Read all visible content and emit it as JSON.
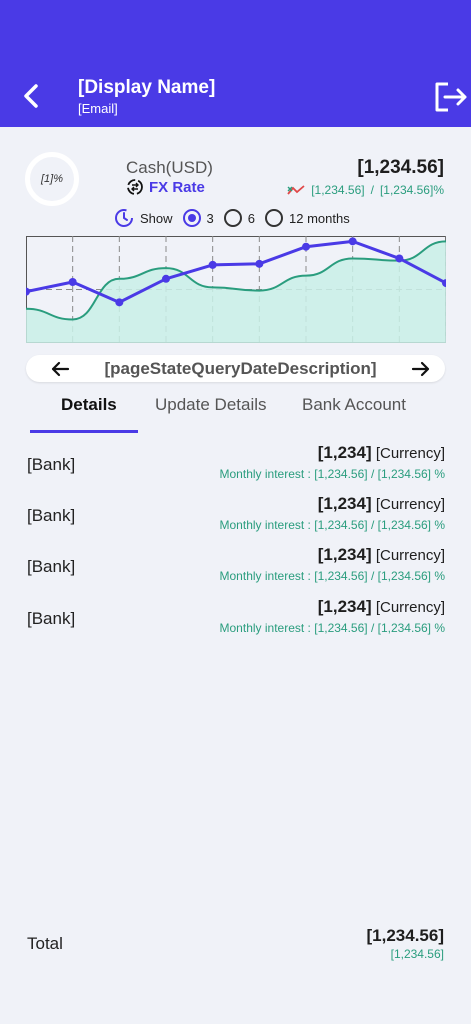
{
  "header": {
    "display_name": "[Display Name]",
    "email": "[Email]",
    "back_icon": "chevron-left-icon",
    "logout_icon": "logout-icon",
    "color": "#4a3ae6"
  },
  "summary": {
    "ring_percent": "[1]%",
    "cash_label": "Cash(USD)",
    "fx_label": "FX Rate",
    "balance": "[1,234.56]",
    "rate_left": "[1,234.56]",
    "rate_sep": "/",
    "rate_right": "[1,234.56]%"
  },
  "period": {
    "show_label": "Show",
    "options": [
      "3",
      "6",
      "12 months"
    ],
    "selected": "3"
  },
  "chart_data": {
    "type": "line",
    "series": [
      {
        "values": [
          0.48,
          0.57,
          0.38,
          0.6,
          0.73,
          0.74,
          0.9,
          0.95,
          0.79,
          0.56
        ]
      }
    ],
    "area_series": [
      {
        "values": [
          0.32,
          0.22,
          0.6,
          0.7,
          0.52,
          0.49,
          0.63,
          0.79,
          0.77,
          0.95
        ]
      }
    ],
    "ylim": [
      0,
      1
    ],
    "grid": true,
    "colors": {
      "line": "#4a3ae6",
      "area": "#2a9d7e",
      "area_fill": "#c9f0e7"
    }
  },
  "date_nav": {
    "description": "[pageStateQueryDateDescription]"
  },
  "tabs": [
    {
      "label": "Details",
      "active": true
    },
    {
      "label": "Update Details",
      "active": false
    },
    {
      "label": "Bank Account",
      "active": false
    }
  ],
  "banks": [
    {
      "name": "[Bank]",
      "amount": "[1,234]",
      "currency": "[Currency]",
      "interest_label": "Monthly interest :",
      "interest": "[1,234.56] / [1,234.56] %"
    },
    {
      "name": "[Bank]",
      "amount": "[1,234]",
      "currency": "[Currency]",
      "interest_label": "Monthly interest :",
      "interest": "[1,234.56] / [1,234.56] %"
    },
    {
      "name": "[Bank]",
      "amount": "[1,234]",
      "currency": "[Currency]",
      "interest_label": "Monthly interest :",
      "interest": "[1,234.56] / [1,234.56] %"
    },
    {
      "name": "[Bank]",
      "amount": "[1,234]",
      "currency": "[Currency]",
      "interest_label": "Monthly interest :",
      "interest": "[1,234.56] / [1,234.56] %"
    }
  ],
  "total": {
    "label": "Total",
    "amount": "[1,234.56]",
    "sub": "[1,234.56]"
  }
}
